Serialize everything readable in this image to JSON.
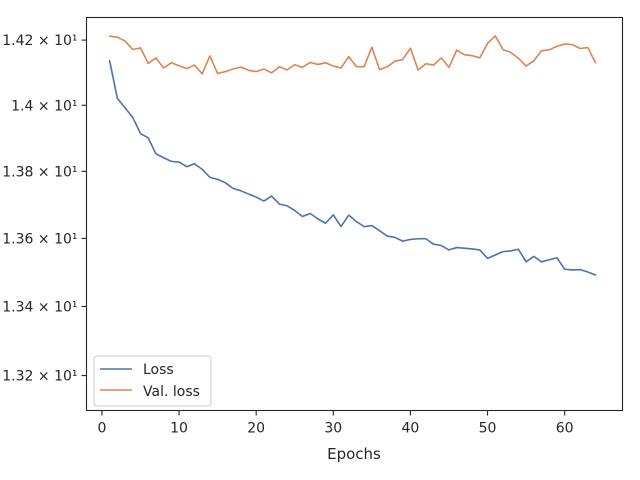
{
  "chart_data": {
    "type": "line",
    "title": "",
    "xlabel": "Epochs",
    "ylabel": "",
    "xlim": [
      -2,
      67.5
    ],
    "ylim": [
      13.1,
      14.27
    ],
    "y_scale": "log",
    "grid": false,
    "legend_position": "lower-left",
    "x_ticks": [
      0,
      10,
      20,
      30,
      40,
      50,
      60
    ],
    "x_tick_labels": [
      "0",
      "10",
      "20",
      "30",
      "40",
      "50",
      "60"
    ],
    "y_ticks": [
      13.2,
      13.4,
      13.6,
      13.8,
      14.0,
      14.2
    ],
    "y_tick_labels": [
      "1.32 × 10¹",
      "1.34 × 10¹",
      "1.36 × 10¹",
      "1.38 × 10¹",
      "1.4 × 10¹",
      "1.42 × 10¹"
    ],
    "x": [
      1,
      2,
      3,
      4,
      5,
      6,
      7,
      8,
      9,
      10,
      11,
      12,
      13,
      14,
      15,
      16,
      17,
      18,
      19,
      20,
      21,
      22,
      23,
      24,
      25,
      26,
      27,
      28,
      29,
      30,
      31,
      32,
      33,
      34,
      35,
      36,
      37,
      38,
      39,
      40,
      41,
      42,
      43,
      44,
      45,
      46,
      47,
      48,
      49,
      50,
      51,
      52,
      53,
      54,
      55,
      56,
      57,
      58,
      59,
      60,
      61,
      62,
      63,
      64
    ],
    "series": [
      {
        "name": "Loss",
        "color": "#4c72b0",
        "values": [
          14.136,
          14.021,
          13.992,
          13.963,
          13.914,
          13.901,
          13.853,
          13.841,
          13.83,
          13.828,
          13.814,
          13.823,
          13.806,
          13.782,
          13.776,
          13.766,
          13.749,
          13.742,
          13.732,
          13.723,
          13.711,
          13.726,
          13.702,
          13.697,
          13.683,
          13.665,
          13.674,
          13.658,
          13.645,
          13.67,
          13.635,
          13.669,
          13.65,
          13.635,
          13.638,
          13.623,
          13.607,
          13.603,
          13.592,
          13.597,
          13.599,
          13.599,
          13.583,
          13.579,
          13.566,
          13.573,
          13.571,
          13.569,
          13.566,
          13.541,
          13.551,
          13.561,
          13.563,
          13.568,
          13.531,
          13.547,
          13.531,
          13.537,
          13.543,
          13.509,
          13.507,
          13.508,
          13.501,
          13.492
        ]
      },
      {
        "name": "Val. loss",
        "color": "#dd8452",
        "values": [
          14.212,
          14.209,
          14.197,
          14.171,
          14.176,
          14.128,
          14.145,
          14.114,
          14.13,
          14.121,
          14.112,
          14.123,
          14.096,
          14.151,
          14.097,
          14.103,
          14.111,
          14.117,
          14.107,
          14.103,
          14.111,
          14.099,
          14.118,
          14.108,
          14.124,
          14.116,
          14.131,
          14.125,
          14.13,
          14.12,
          14.114,
          14.149,
          14.118,
          14.118,
          14.178,
          14.109,
          14.118,
          14.135,
          14.14,
          14.175,
          14.108,
          14.127,
          14.123,
          14.145,
          14.116,
          14.169,
          14.155,
          14.152,
          14.145,
          14.19,
          14.213,
          14.171,
          14.162,
          14.144,
          14.12,
          14.136,
          14.167,
          14.17,
          14.181,
          14.188,
          14.186,
          14.174,
          14.177,
          14.13
        ]
      }
    ]
  }
}
